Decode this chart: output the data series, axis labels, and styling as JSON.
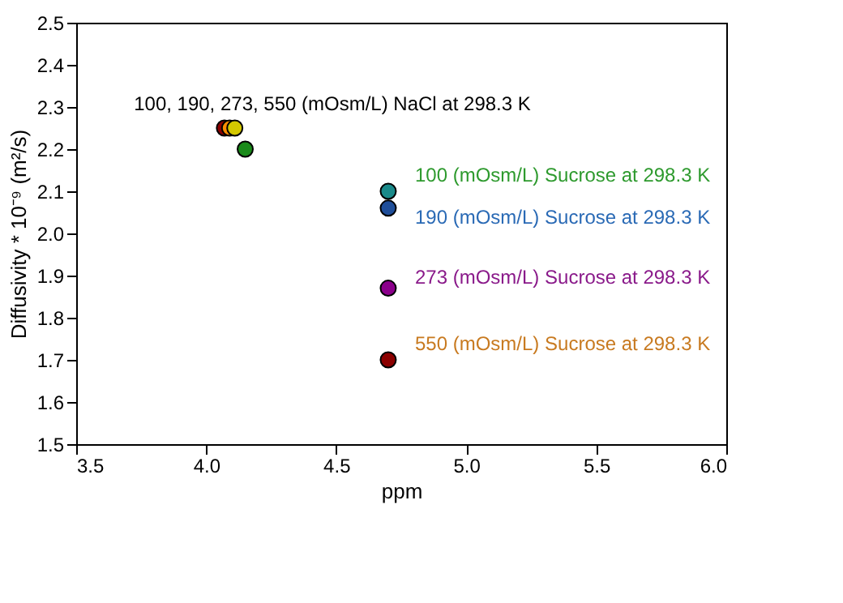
{
  "chart_data": {
    "type": "scatter",
    "xlabel": "ppm",
    "ylabel": "Diffusivity * 10⁻⁹ (m²/s)",
    "series": [
      {
        "x": [
          4.07,
          4.09,
          4.11,
          4.15,
          4.7,
          4.7,
          4.7,
          4.7
        ],
        "values": [
          2.25,
          2.25,
          2.25,
          2.2,
          2.1,
          2.06,
          1.87,
          1.7
        ],
        "colors": [
          "#8b0000",
          "#ff8c00",
          "#d4c800",
          "#1a8a1a",
          "#1a8a8a",
          "#1f4e99",
          "#8b008b",
          "#8b0000"
        ]
      }
    ],
    "annotations": [
      "100, 190, 273, 550 (mOsm/L) NaCl at 298.3 K",
      "100 (mOsm/L) Sucrose at 298.3 K",
      "190 (mOsm/L) Sucrose at 298.3 K",
      "273 (mOsm/L) Sucrose at 298.3 K",
      "550 (mOsm/L) Sucrose at 298.3 K"
    ],
    "xlim": [
      3.5,
      6.0
    ],
    "xticks": [
      {
        "value": 3.5,
        "label": "3.5"
      },
      {
        "value": 4.0,
        "label": "4.0"
      },
      {
        "value": 4.5,
        "label": "4.5"
      },
      {
        "value": 5.0,
        "label": "5.0"
      },
      {
        "value": 5.5,
        "label": "5.5"
      },
      {
        "value": 6.0,
        "label": "6.0"
      }
    ],
    "ylim": [
      1.5,
      2.5
    ],
    "yticks": [
      {
        "value": 1.5,
        "label": "1.5"
      },
      {
        "value": 1.6,
        "label": "1.6"
      },
      {
        "value": 1.7,
        "label": "1.7"
      },
      {
        "value": 1.8,
        "label": "1.8"
      },
      {
        "value": 1.9,
        "label": "1.9"
      },
      {
        "value": 2.0,
        "label": "2.0"
      },
      {
        "value": 2.1,
        "label": "2.1"
      },
      {
        "value": 2.2,
        "label": "2.2"
      },
      {
        "value": 2.3,
        "label": "2.3"
      },
      {
        "value": 2.4,
        "label": "2.4"
      },
      {
        "value": 2.5,
        "label": "2.5"
      }
    ],
    "grid": false,
    "marker": "circle"
  }
}
